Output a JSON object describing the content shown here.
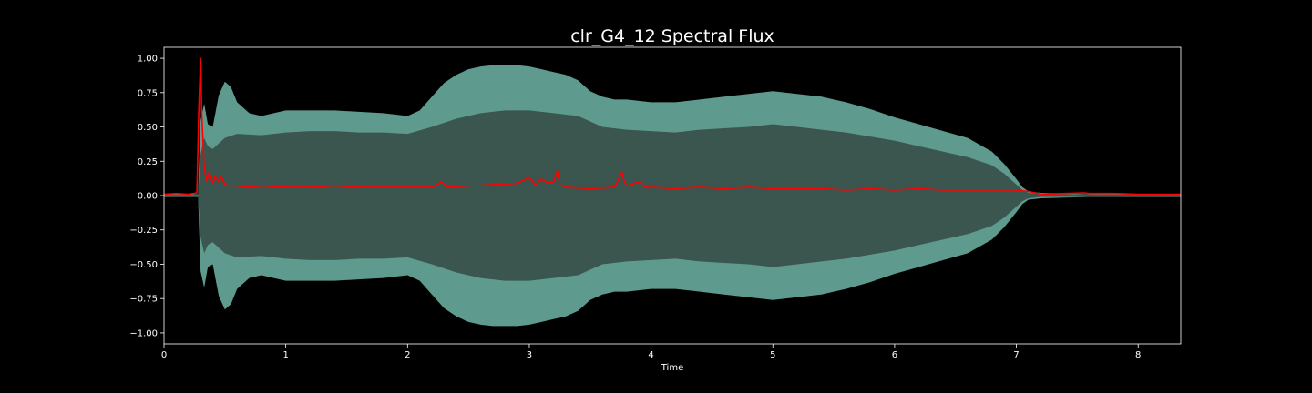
{
  "chart_data": {
    "type": "area",
    "title": "clr_G4_12 Spectral Flux",
    "xlabel": "Time",
    "ylabel": "",
    "xlim": [
      0,
      8.35
    ],
    "ylim": [
      -1.08,
      1.08
    ],
    "x_ticks": [
      0,
      1,
      2,
      3,
      4,
      5,
      6,
      7,
      8
    ],
    "x_tick_labels": [
      "0",
      "1",
      "2",
      "3",
      "4",
      "5",
      "6",
      "7",
      "8"
    ],
    "y_ticks": [
      1.0,
      0.75,
      0.5,
      0.25,
      0.0,
      -0.25,
      -0.5,
      -0.75,
      -1.0
    ],
    "y_tick_labels": [
      "1.00",
      "0.75",
      "0.50",
      "0.25",
      "0.00",
      "−0.25",
      "−0.50",
      "−0.75",
      "−1.00"
    ],
    "grid": false,
    "colors": {
      "background": "#000000",
      "axes_frame": "#ffffff",
      "waveform_outer": "#5e9a8e",
      "waveform_inner": "#3b564f",
      "flux": "#ff0000"
    },
    "series": [
      {
        "role": "waveform-peak-envelope",
        "x": [
          0,
          0.28,
          0.29,
          0.3,
          0.33,
          0.36,
          0.4,
          0.45,
          0.5,
          0.55,
          0.6,
          0.7,
          0.8,
          0.9,
          1.0,
          1.2,
          1.4,
          1.6,
          1.8,
          2.0,
          2.1,
          2.2,
          2.3,
          2.4,
          2.5,
          2.6,
          2.7,
          2.8,
          2.9,
          3.0,
          3.1,
          3.2,
          3.3,
          3.4,
          3.5,
          3.6,
          3.7,
          3.8,
          3.9,
          4.0,
          4.2,
          4.4,
          4.6,
          4.8,
          5.0,
          5.2,
          5.3,
          5.4,
          5.5,
          5.6,
          5.8,
          6.0,
          6.2,
          6.4,
          6.6,
          6.8,
          6.9,
          7.0,
          7.05,
          7.1,
          7.2,
          7.4,
          7.6,
          8.0,
          8.35
        ],
        "upper": [
          0.01,
          0.01,
          0.3,
          0.55,
          0.67,
          0.52,
          0.5,
          0.73,
          0.83,
          0.79,
          0.68,
          0.6,
          0.58,
          0.6,
          0.62,
          0.62,
          0.62,
          0.61,
          0.6,
          0.58,
          0.62,
          0.72,
          0.82,
          0.88,
          0.92,
          0.94,
          0.95,
          0.95,
          0.95,
          0.94,
          0.92,
          0.9,
          0.88,
          0.84,
          0.76,
          0.72,
          0.7,
          0.7,
          0.69,
          0.68,
          0.68,
          0.7,
          0.72,
          0.74,
          0.76,
          0.74,
          0.73,
          0.72,
          0.7,
          0.68,
          0.63,
          0.57,
          0.52,
          0.47,
          0.42,
          0.32,
          0.23,
          0.12,
          0.06,
          0.03,
          0.02,
          0.015,
          0.01,
          0.01,
          0.01
        ],
        "lower": [
          -0.01,
          -0.01,
          -0.3,
          -0.55,
          -0.67,
          -0.52,
          -0.5,
          -0.73,
          -0.83,
          -0.79,
          -0.68,
          -0.6,
          -0.58,
          -0.6,
          -0.62,
          -0.62,
          -0.62,
          -0.61,
          -0.6,
          -0.58,
          -0.62,
          -0.72,
          -0.82,
          -0.88,
          -0.92,
          -0.94,
          -0.95,
          -0.95,
          -0.95,
          -0.94,
          -0.92,
          -0.9,
          -0.88,
          -0.84,
          -0.76,
          -0.72,
          -0.7,
          -0.7,
          -0.69,
          -0.68,
          -0.68,
          -0.7,
          -0.72,
          -0.74,
          -0.76,
          -0.74,
          -0.73,
          -0.72,
          -0.7,
          -0.68,
          -0.63,
          -0.57,
          -0.52,
          -0.47,
          -0.42,
          -0.32,
          -0.23,
          -0.12,
          -0.06,
          -0.03,
          -0.02,
          -0.015,
          -0.01,
          -0.01,
          -0.01
        ]
      },
      {
        "role": "waveform-rms-envelope",
        "x": [
          0,
          0.28,
          0.3,
          0.33,
          0.36,
          0.4,
          0.5,
          0.6,
          0.8,
          1.0,
          1.2,
          1.4,
          1.6,
          1.8,
          2.0,
          2.2,
          2.4,
          2.6,
          2.8,
          3.0,
          3.2,
          3.4,
          3.6,
          3.8,
          4.0,
          4.2,
          4.4,
          4.6,
          4.8,
          5.0,
          5.2,
          5.4,
          5.6,
          5.8,
          6.0,
          6.2,
          6.4,
          6.6,
          6.8,
          6.9,
          7.0,
          7.05,
          7.1,
          7.2,
          8.35
        ],
        "upper": [
          0.005,
          0.005,
          0.3,
          0.42,
          0.36,
          0.34,
          0.42,
          0.45,
          0.44,
          0.46,
          0.47,
          0.47,
          0.46,
          0.46,
          0.45,
          0.5,
          0.56,
          0.6,
          0.62,
          0.62,
          0.6,
          0.58,
          0.5,
          0.48,
          0.47,
          0.46,
          0.48,
          0.49,
          0.5,
          0.52,
          0.5,
          0.48,
          0.46,
          0.43,
          0.4,
          0.36,
          0.32,
          0.28,
          0.22,
          0.16,
          0.08,
          0.04,
          0.02,
          0.01,
          0.005
        ],
        "lower": [
          -0.005,
          -0.005,
          -0.3,
          -0.42,
          -0.36,
          -0.34,
          -0.42,
          -0.45,
          -0.44,
          -0.46,
          -0.47,
          -0.47,
          -0.46,
          -0.46,
          -0.45,
          -0.5,
          -0.56,
          -0.6,
          -0.62,
          -0.62,
          -0.6,
          -0.58,
          -0.5,
          -0.48,
          -0.47,
          -0.46,
          -0.48,
          -0.49,
          -0.5,
          -0.52,
          -0.5,
          -0.48,
          -0.46,
          -0.43,
          -0.4,
          -0.36,
          -0.32,
          -0.28,
          -0.22,
          -0.16,
          -0.08,
          -0.04,
          -0.02,
          -0.01,
          -0.005
        ]
      },
      {
        "role": "spectral-flux",
        "x": [
          0,
          0.1,
          0.2,
          0.27,
          0.285,
          0.3,
          0.31,
          0.33,
          0.35,
          0.37,
          0.4,
          0.42,
          0.45,
          0.47,
          0.5,
          0.55,
          0.6,
          0.7,
          0.8,
          1.0,
          1.2,
          1.4,
          1.6,
          1.8,
          2.0,
          2.2,
          2.28,
          2.3,
          2.32,
          2.5,
          2.7,
          2.9,
          3.0,
          3.05,
          3.1,
          3.15,
          3.2,
          3.23,
          3.25,
          3.3,
          3.5,
          3.7,
          3.76,
          3.78,
          3.8,
          3.9,
          3.95,
          4.0,
          4.2,
          4.4,
          4.6,
          4.8,
          5.0,
          5.2,
          5.4,
          5.6,
          5.8,
          6.0,
          6.2,
          6.4,
          6.6,
          6.8,
          7.0,
          7.1,
          7.2,
          7.4,
          7.55,
          7.6,
          7.8,
          8.0,
          8.2,
          8.35
        ],
        "y": [
          0.01,
          0.015,
          0.01,
          0.02,
          0.6,
          1.0,
          0.6,
          0.2,
          0.11,
          0.17,
          0.09,
          0.14,
          0.1,
          0.14,
          0.08,
          0.07,
          0.07,
          0.06,
          0.07,
          0.06,
          0.06,
          0.07,
          0.06,
          0.06,
          0.06,
          0.06,
          0.1,
          0.08,
          0.06,
          0.07,
          0.08,
          0.09,
          0.13,
          0.08,
          0.12,
          0.09,
          0.1,
          0.18,
          0.08,
          0.06,
          0.05,
          0.06,
          0.17,
          0.1,
          0.07,
          0.1,
          0.06,
          0.06,
          0.05,
          0.06,
          0.05,
          0.06,
          0.05,
          0.05,
          0.05,
          0.04,
          0.05,
          0.04,
          0.05,
          0.04,
          0.04,
          0.04,
          0.04,
          0.03,
          0.01,
          0.015,
          0.02,
          0.015,
          0.015,
          0.01,
          0.01,
          0.01
        ]
      }
    ]
  }
}
